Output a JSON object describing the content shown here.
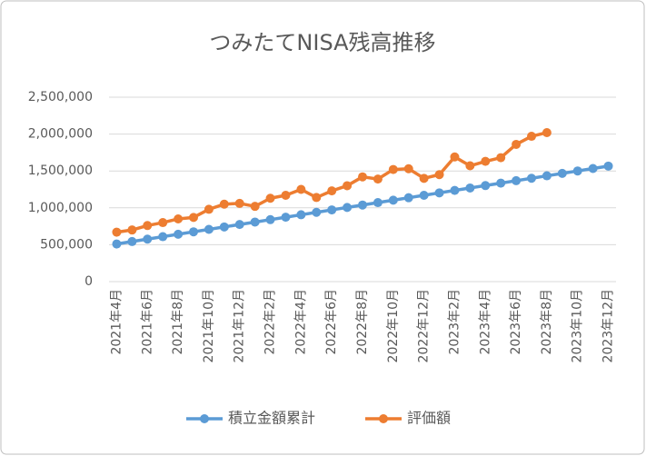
{
  "chart_data": {
    "type": "line",
    "title": "つみたてNISA残高推移",
    "categories": [
      "2021年4月",
      null,
      "2021年6月",
      null,
      "2021年8月",
      null,
      "2021年10月",
      null,
      "2021年12月",
      null,
      "2022年2月",
      null,
      "2022年4月",
      null,
      "2022年6月",
      null,
      "2022年8月",
      null,
      "2022年10月",
      null,
      "2022年12月",
      null,
      "2023年2月",
      null,
      "2023年4月",
      null,
      "2023年6月",
      null,
      "2023年8月",
      null,
      "2023年10月",
      null,
      "2023年12月"
    ],
    "series": [
      {
        "name": "積立金額累計",
        "color": "#5b9bd5",
        "values": [
          510000,
          543000,
          576000,
          609000,
          642000,
          675000,
          708000,
          741000,
          774000,
          807000,
          840000,
          873000,
          906000,
          939000,
          972000,
          1005000,
          1038000,
          1071000,
          1104000,
          1137000,
          1170000,
          1203000,
          1236000,
          1269000,
          1302000,
          1335000,
          1368000,
          1401000,
          1434000,
          1467000,
          1500000,
          1533000,
          1566000
        ]
      },
      {
        "name": "評価額",
        "color": "#ed7d31",
        "values": [
          670000,
          700000,
          760000,
          800000,
          850000,
          870000,
          980000,
          1050000,
          1060000,
          1020000,
          1130000,
          1170000,
          1250000,
          1140000,
          1230000,
          1300000,
          1420000,
          1390000,
          1520000,
          1530000,
          1400000,
          1450000,
          1690000,
          1570000,
          1630000,
          1680000,
          1860000,
          1970000,
          2020000,
          null,
          null,
          null,
          null
        ]
      }
    ],
    "ylim": [
      0,
      2500000
    ],
    "yticks": [
      0,
      {
        "value": 500000,
        "label": "500,000"
      },
      {
        "value": 1000000,
        "label": "1,000,000"
      },
      {
        "value": 1500000,
        "label": "1,500,000"
      },
      {
        "value": 2000000,
        "label": "2,000,000"
      },
      {
        "value": 2500000,
        "label": "2,500,000"
      }
    ],
    "grid": true,
    "legend": "bottom"
  }
}
